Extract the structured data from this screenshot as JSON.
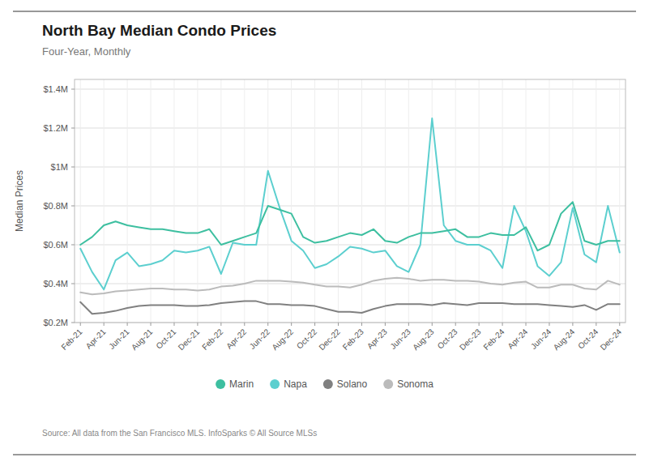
{
  "chart_data": {
    "type": "line",
    "title": "North Bay Median Condo Prices",
    "subtitle": "Four-Year, Monthly",
    "ylabel": "Median Prices",
    "annotations": [
      "Source:  All data from the San Francisco MLS. InfoSparks © All Source MLSs"
    ],
    "categories": [
      "Feb-21",
      null,
      "Apr-21",
      null,
      "Jun-21",
      null,
      "Aug-21",
      null,
      "Oct-21",
      null,
      "Dec-21",
      null,
      "Feb-22",
      null,
      "Apr-22",
      null,
      "Jun-22",
      null,
      "Aug-22",
      null,
      "Oct-22",
      null,
      "Dec-22",
      null,
      "Feb-23",
      null,
      "Apr-23",
      null,
      "Jun-23",
      null,
      "Aug-23",
      null,
      "Oct-23",
      null,
      "Dec-23",
      null,
      "Feb-24",
      null,
      "Apr-24",
      null,
      "Jun-24",
      null,
      "Aug-24",
      null,
      "Oct-24",
      null,
      "Dec-24"
    ],
    "series": [
      {
        "name": "Marin",
        "color": "#3dbfa0",
        "values": [
          600000,
          640000,
          700000,
          720000,
          700000,
          690000,
          680000,
          680000,
          670000,
          660000,
          660000,
          680000,
          600000,
          620000,
          640000,
          660000,
          800000,
          780000,
          760000,
          640000,
          610000,
          620000,
          640000,
          660000,
          650000,
          680000,
          620000,
          610000,
          640000,
          660000,
          660000,
          670000,
          680000,
          640000,
          640000,
          660000,
          650000,
          650000,
          690000,
          570000,
          600000,
          760000,
          820000,
          620000,
          600000,
          620000,
          620000
        ]
      },
      {
        "name": "Napa",
        "color": "#5ccfcf",
        "values": [
          580000,
          460000,
          370000,
          520000,
          560000,
          490000,
          500000,
          520000,
          570000,
          560000,
          570000,
          590000,
          450000,
          610000,
          600000,
          600000,
          980000,
          790000,
          620000,
          570000,
          480000,
          500000,
          540000,
          590000,
          580000,
          560000,
          570000,
          490000,
          460000,
          600000,
          1250000,
          700000,
          620000,
          600000,
          600000,
          570000,
          480000,
          800000,
          670000,
          490000,
          440000,
          510000,
          790000,
          550000,
          510000,
          800000,
          560000
        ]
      },
      {
        "name": "Solano",
        "color": "#808080",
        "values": [
          305000,
          245000,
          250000,
          260000,
          275000,
          285000,
          290000,
          290000,
          290000,
          285000,
          285000,
          290000,
          300000,
          305000,
          310000,
          310000,
          295000,
          295000,
          290000,
          290000,
          285000,
          270000,
          255000,
          255000,
          250000,
          270000,
          285000,
          295000,
          295000,
          295000,
          290000,
          300000,
          295000,
          290000,
          300000,
          300000,
          300000,
          295000,
          295000,
          295000,
          290000,
          285000,
          280000,
          290000,
          265000,
          295000,
          295000
        ]
      },
      {
        "name": "Sonoma",
        "color": "#bbbbbb",
        "values": [
          355000,
          345000,
          350000,
          360000,
          365000,
          370000,
          375000,
          375000,
          370000,
          370000,
          365000,
          370000,
          385000,
          390000,
          400000,
          415000,
          415000,
          415000,
          410000,
          405000,
          395000,
          385000,
          385000,
          380000,
          395000,
          415000,
          425000,
          430000,
          425000,
          415000,
          420000,
          420000,
          415000,
          415000,
          410000,
          400000,
          395000,
          405000,
          410000,
          380000,
          380000,
          395000,
          395000,
          375000,
          370000,
          415000,
          395000
        ]
      }
    ],
    "ylim": [
      200000,
      1450000
    ],
    "yticks": [
      {
        "value": 200000,
        "label": "$0.2M"
      },
      {
        "value": 400000,
        "label": "$0.4M"
      },
      {
        "value": 600000,
        "label": "$0.6M"
      },
      {
        "value": 800000,
        "label": "$0.8M"
      },
      {
        "value": 1000000,
        "label": "$1M"
      },
      {
        "value": 1200000,
        "label": "$1.2M"
      },
      {
        "value": 1400000,
        "label": "$1.4M"
      }
    ],
    "grid": true,
    "legend": "bottom"
  }
}
